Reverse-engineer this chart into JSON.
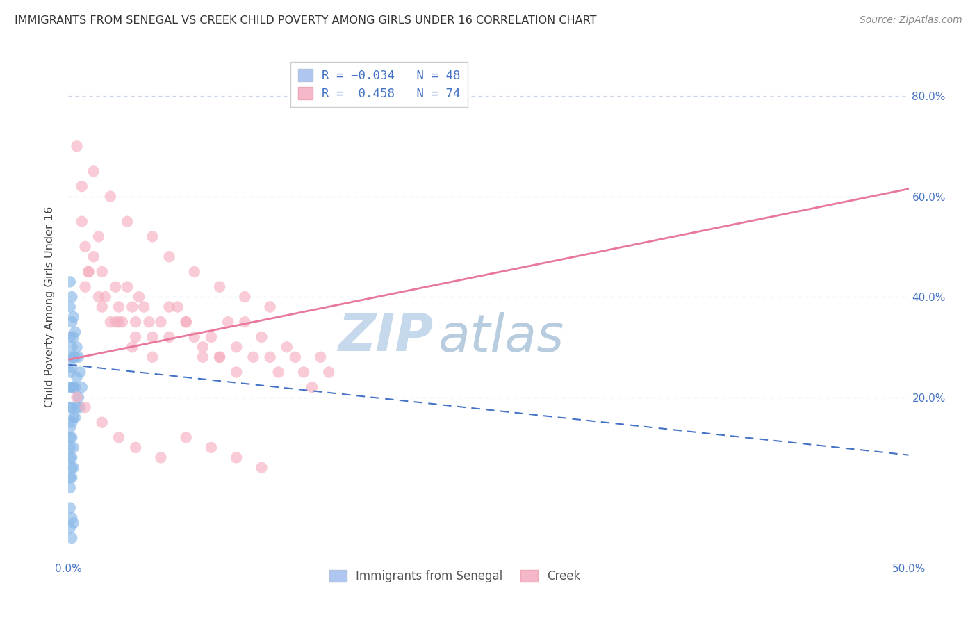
{
  "title": "IMMIGRANTS FROM SENEGAL VS CREEK CHILD POVERTY AMONG GIRLS UNDER 16 CORRELATION CHART",
  "source": "Source: ZipAtlas.com",
  "ylabel": "Child Poverty Among Girls Under 16",
  "xlim": [
    0.0,
    0.5
  ],
  "ylim": [
    -0.12,
    0.88
  ],
  "xtick_positions": [
    0.0,
    0.1,
    0.2,
    0.3,
    0.4,
    0.5
  ],
  "xtick_labels": [
    "0.0%",
    "",
    "",
    "",
    "",
    "50.0%"
  ],
  "ytick_positions": [
    0.2,
    0.4,
    0.6,
    0.8
  ],
  "ytick_labels": [
    "20.0%",
    "40.0%",
    "60.0%",
    "80.0%"
  ],
  "senegal_color": "#89b8e8",
  "creek_color": "#f5afc0",
  "senegal_line_color": "#4472c4",
  "creek_line_color": "#e87799",
  "watermark": "ZIPatlas",
  "watermark_color_zip": "#c5d8ec",
  "watermark_color_atlas": "#b8cce0",
  "R_senegal": -0.034,
  "N_senegal": 48,
  "R_creek": 0.458,
  "N_creek": 74,
  "background_color": "#ffffff",
  "grid_color": "#c8d4e8",
  "senegal_line_y0": 0.265,
  "senegal_line_y1": 0.085,
  "creek_line_y0": 0.275,
  "creek_line_y1": 0.615,
  "senegal_points_x": [
    0.001,
    0.001,
    0.001,
    0.001,
    0.001,
    0.001,
    0.001,
    0.001,
    0.001,
    0.001,
    0.002,
    0.002,
    0.002,
    0.002,
    0.002,
    0.002,
    0.002,
    0.002,
    0.003,
    0.003,
    0.003,
    0.003,
    0.003,
    0.004,
    0.004,
    0.004,
    0.004,
    0.005,
    0.005,
    0.005,
    0.006,
    0.006,
    0.007,
    0.007,
    0.008,
    0.001,
    0.001,
    0.002,
    0.002,
    0.003,
    0.001,
    0.002,
    0.003,
    0.002,
    0.001,
    0.002,
    0.001,
    0.003
  ],
  "senegal_points_y": [
    0.43,
    0.38,
    0.32,
    0.28,
    0.25,
    0.22,
    0.18,
    0.14,
    0.08,
    0.04,
    0.4,
    0.35,
    0.3,
    0.26,
    0.22,
    0.18,
    0.12,
    0.06,
    0.36,
    0.32,
    0.28,
    0.22,
    0.16,
    0.33,
    0.28,
    0.22,
    0.16,
    0.3,
    0.24,
    0.18,
    0.28,
    0.2,
    0.25,
    0.18,
    0.22,
    -0.02,
    -0.06,
    -0.04,
    -0.08,
    -0.05,
    0.1,
    0.08,
    0.06,
    0.04,
    0.02,
    0.15,
    0.12,
    0.1
  ],
  "creek_points_x": [
    0.005,
    0.008,
    0.01,
    0.012,
    0.015,
    0.018,
    0.02,
    0.022,
    0.025,
    0.028,
    0.03,
    0.032,
    0.035,
    0.038,
    0.04,
    0.042,
    0.045,
    0.048,
    0.05,
    0.055,
    0.06,
    0.065,
    0.07,
    0.075,
    0.08,
    0.085,
    0.09,
    0.095,
    0.1,
    0.105,
    0.11,
    0.115,
    0.12,
    0.125,
    0.13,
    0.135,
    0.14,
    0.145,
    0.15,
    0.155,
    0.008,
    0.015,
    0.025,
    0.035,
    0.05,
    0.06,
    0.075,
    0.09,
    0.105,
    0.12,
    0.005,
    0.01,
    0.02,
    0.03,
    0.04,
    0.055,
    0.07,
    0.085,
    0.1,
    0.115,
    0.01,
    0.02,
    0.03,
    0.04,
    0.05,
    0.06,
    0.07,
    0.08,
    0.09,
    0.1,
    0.012,
    0.018,
    0.028,
    0.038
  ],
  "creek_points_y": [
    0.7,
    0.55,
    0.5,
    0.45,
    0.48,
    0.52,
    0.45,
    0.4,
    0.35,
    0.42,
    0.38,
    0.35,
    0.42,
    0.38,
    0.35,
    0.4,
    0.38,
    0.35,
    0.32,
    0.35,
    0.32,
    0.38,
    0.35,
    0.32,
    0.28,
    0.32,
    0.28,
    0.35,
    0.3,
    0.35,
    0.28,
    0.32,
    0.28,
    0.25,
    0.3,
    0.28,
    0.25,
    0.22,
    0.28,
    0.25,
    0.62,
    0.65,
    0.6,
    0.55,
    0.52,
    0.48,
    0.45,
    0.42,
    0.4,
    0.38,
    0.2,
    0.18,
    0.15,
    0.12,
    0.1,
    0.08,
    0.12,
    0.1,
    0.08,
    0.06,
    0.42,
    0.38,
    0.35,
    0.32,
    0.28,
    0.38,
    0.35,
    0.3,
    0.28,
    0.25,
    0.45,
    0.4,
    0.35,
    0.3
  ]
}
